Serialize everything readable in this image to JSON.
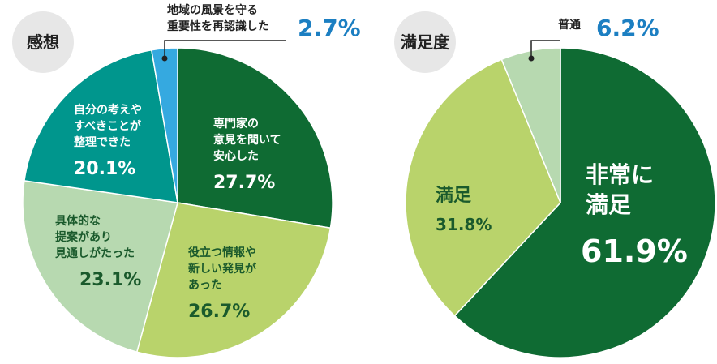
{
  "colors": {
    "dark_green": "#0f6b33",
    "light_green": "#b9d36b",
    "pale_green": "#b7d9b0",
    "teal": "#00968d",
    "blue": "#35a9e0",
    "callout_blue": "#1c7fc2",
    "badge_bg": "#e7e7e7"
  },
  "chart_data": [
    {
      "type": "pie",
      "title": "感想",
      "unit": "%",
      "slices": [
        {
          "label_lines": [
            "専門家の",
            "意見を聞いて",
            "安心した"
          ],
          "value": 27.7,
          "value_label": "27.7%",
          "color": "#0f6b33",
          "text_color": "#ffffff"
        },
        {
          "label_lines": [
            "役立つ情報や",
            "新しい発見が",
            "あった"
          ],
          "value": 26.7,
          "value_label": "26.7%",
          "color": "#b9d36b",
          "text_color": "#1a5a2c"
        },
        {
          "label_lines": [
            "具体的な",
            "提案があり",
            "見通しがたった"
          ],
          "value": 23.1,
          "value_label": "23.1%",
          "color": "#b7d9b0",
          "text_color": "#1a5a2c"
        },
        {
          "label_lines": [
            "自分の考えや",
            "すべきことが",
            "整理できた"
          ],
          "value": 20.1,
          "value_label": "20.1%",
          "color": "#00968d",
          "text_color": "#ffffff"
        },
        {
          "label_lines": [
            "地域の風景を守る",
            "重要性を再認識した"
          ],
          "value": 2.7,
          "value_label": "2.7%",
          "color": "#35a9e0",
          "text_color": "#222222",
          "callout": true
        }
      ]
    },
    {
      "type": "pie",
      "title": "満足度",
      "unit": "%",
      "slices": [
        {
          "label_lines": [
            "非常に",
            "満足"
          ],
          "value": 61.9,
          "value_label": "61.9%",
          "color": "#0f6b33",
          "text_color": "#ffffff"
        },
        {
          "label_lines": [
            "満足"
          ],
          "value": 31.8,
          "value_label": "31.8%",
          "color": "#b9d36b",
          "text_color": "#1a5a2c"
        },
        {
          "label_lines": [
            "普通"
          ],
          "value": 6.2,
          "value_label": "6.2%",
          "color": "#b7d9b0",
          "text_color": "#222222",
          "callout": true
        }
      ]
    }
  ]
}
